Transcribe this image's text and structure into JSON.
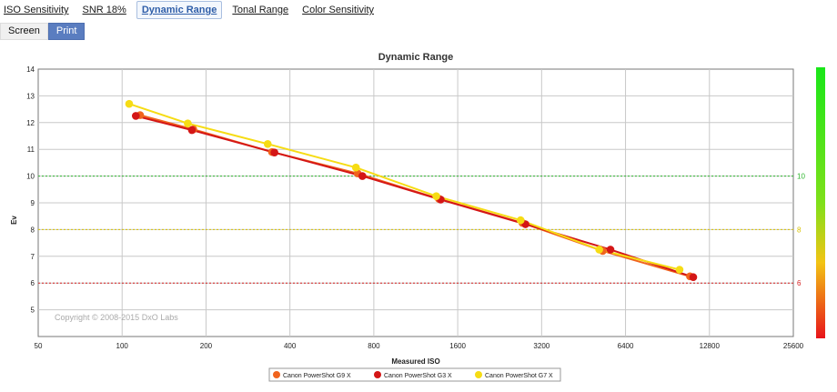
{
  "tabs": [
    {
      "label": "ISO Sensitivity",
      "active": false
    },
    {
      "label": "SNR 18%",
      "active": false
    },
    {
      "label": "Dynamic Range",
      "active": true
    },
    {
      "label": "Tonal Range",
      "active": false
    },
    {
      "label": "Color Sensitivity",
      "active": false
    }
  ],
  "mode": {
    "screen_label": "Screen",
    "print_label": "Print",
    "selected": "Print"
  },
  "chart_data": {
    "type": "line",
    "title": "Dynamic Range",
    "xlabel": "Measured ISO",
    "ylabel": "Ev",
    "x_scale": "log2",
    "xlim": [
      50,
      25600
    ],
    "ylim": [
      4,
      14
    ],
    "x_ticks": [
      50,
      100,
      200,
      400,
      800,
      1600,
      3200,
      6400,
      12800,
      25600
    ],
    "y_ticks": [
      5,
      6,
      7,
      8,
      9,
      10,
      11,
      12,
      13,
      14
    ],
    "grid": true,
    "reference_lines": [
      {
        "value": 10,
        "label": "10",
        "color": "#2db52d"
      },
      {
        "value": 8,
        "label": "8",
        "color": "#d8c200"
      },
      {
        "value": 6,
        "label": "6",
        "color": "#d42020"
      }
    ],
    "watermark": "Copyright © 2008-2015 DxO Labs",
    "legend_position": "bottom",
    "series": [
      {
        "name": "Canon PowerShot G9 X",
        "color": "#f0641e",
        "points": [
          [
            116,
            12.28
          ],
          [
            180,
            11.75
          ],
          [
            345,
            10.9
          ],
          [
            700,
            10.1
          ],
          [
            1370,
            9.15
          ],
          [
            2730,
            8.25
          ],
          [
            5300,
            7.2
          ],
          [
            10900,
            6.25
          ]
        ]
      },
      {
        "name": "Canon PowerShot G3 X",
        "color": "#d41616",
        "points": [
          [
            112,
            12.25
          ],
          [
            178,
            11.72
          ],
          [
            352,
            10.88
          ],
          [
            728,
            10.0
          ],
          [
            1390,
            9.12
          ],
          [
            2800,
            8.2
          ],
          [
            5650,
            7.25
          ],
          [
            11200,
            6.22
          ]
        ]
      },
      {
        "name": "Canon PowerShot G7 X",
        "color": "#f6dc14",
        "points": [
          [
            106,
            12.7
          ],
          [
            172,
            11.97
          ],
          [
            333,
            11.2
          ],
          [
            690,
            10.32
          ],
          [
            1340,
            9.25
          ],
          [
            2690,
            8.35
          ],
          [
            5150,
            7.25
          ],
          [
            10000,
            6.5
          ]
        ]
      }
    ]
  }
}
